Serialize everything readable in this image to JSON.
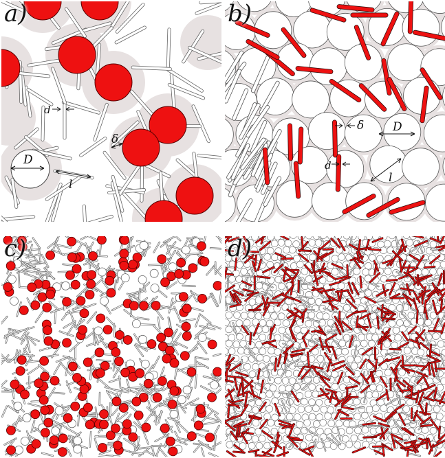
{
  "panels": {
    "a": {
      "label": "a)"
    },
    "b": {
      "label": "b)"
    },
    "c": {
      "label": "c)"
    },
    "d": {
      "label": "d)"
    }
  },
  "annotations": {
    "rod_diameter": "d",
    "disk_diameter": "D",
    "rod_length": "l",
    "gap": "δ"
  },
  "colors": {
    "highlight_red": "#ee1111",
    "shell_gray": "#e7e1e1",
    "outline": "#444444",
    "background": "#ffffff"
  }
}
